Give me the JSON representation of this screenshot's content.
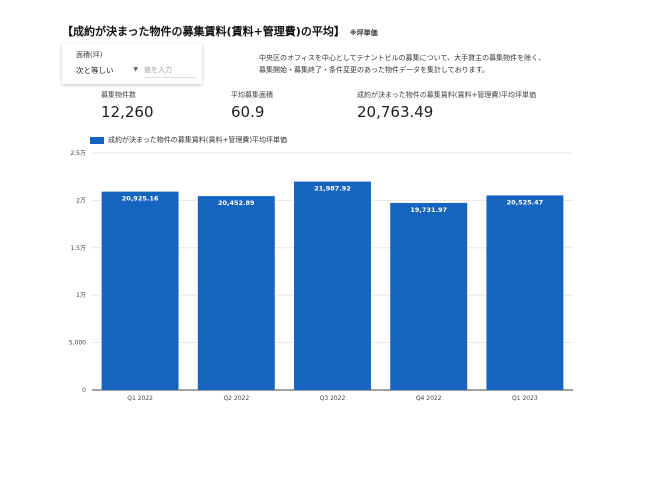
{
  "header": {
    "title": "【成約が決まった物件の募集賃料(賃料+管理費)の平均】",
    "note": "※坪単価"
  },
  "filter": {
    "label": "面積(坪)",
    "operator": "次と等しい",
    "placeholder": "値を入力"
  },
  "description": {
    "lines": [
      "中央区のオフィスを中心としてテナントビルの募集について、大手貸主の募集物件を除く、",
      "募集開始・募集終了・条件変更のあった物件データを集計しております。"
    ]
  },
  "kpis": [
    {
      "label": "募集物件数",
      "value": "12,260"
    },
    {
      "label": "平均募集面積",
      "value": "60.9"
    },
    {
      "label": "成約が決まった物件の募集賃料(賃料+管理費)平均坪単価",
      "value": "20,763.49"
    }
  ],
  "chart_data": {
    "type": "bar",
    "categories": [
      "Q1 2022",
      "Q2 2022",
      "Q3 2022",
      "Q4 2022",
      "Q1 2023"
    ],
    "series": [
      {
        "name": "成約が決まった物件の募集賃料(賃料+管理費)平均坪単価",
        "values": [
          20925.16,
          20452.89,
          21987.92,
          19731.97,
          20525.47
        ],
        "color": "#1565c0"
      }
    ],
    "data_labels": [
      "20,925.16",
      "20,452.89",
      "21,987.92",
      "19,731.97",
      "20,525.47"
    ],
    "ylim": [
      0,
      25000
    ],
    "yticks": [
      0,
      5000,
      10000,
      15000,
      20000,
      25000
    ],
    "ytick_labels": [
      "0",
      "5,000",
      "1万",
      "1.5万",
      "2万",
      "2.5万"
    ],
    "grid": true,
    "legend_position": "top-left"
  }
}
